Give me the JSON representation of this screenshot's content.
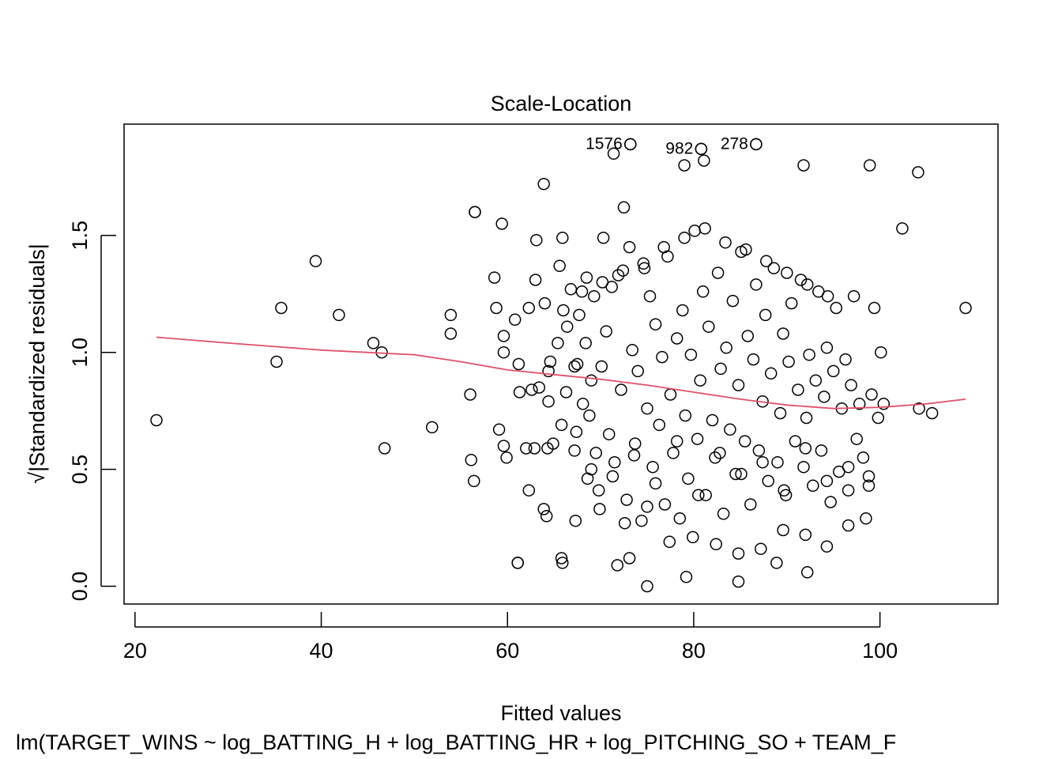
{
  "chart_data": {
    "type": "scatter",
    "title": "Scale-Location",
    "xlabel": "Fitted values",
    "ylabel": "√|Standardized residuals|",
    "subtitle": "lm(TARGET_WINS ~ log_BATTING_H + log_BATTING_HR + log_PITCHING_SO + TEAM_F",
    "xlim": [
      22.3,
      109.2
    ],
    "ylim": [
      0.0,
      1.9
    ],
    "xticks": [
      "20",
      "40",
      "60",
      "80",
      "100"
    ],
    "yticks": [
      "0.0",
      "0.5",
      "1.0",
      "1.5"
    ],
    "grid": false,
    "legend": "none",
    "colors": {
      "points": "#000000",
      "smoother": "#DF536B"
    },
    "labeled_points": [
      {
        "label": "1576",
        "x": 73.2,
        "y": 1.89
      },
      {
        "label": "982",
        "x": 80.8,
        "y": 1.87
      },
      {
        "label": "278",
        "x": 86.7,
        "y": 1.89
      }
    ],
    "smoother": {
      "x": [
        22.3,
        30,
        40,
        50,
        55,
        60,
        65,
        70,
        75,
        80,
        85,
        90,
        95,
        100,
        105,
        109.2
      ],
      "y": [
        1.065,
        1.04,
        1.01,
        0.99,
        0.96,
        0.925,
        0.905,
        0.885,
        0.86,
        0.83,
        0.8,
        0.775,
        0.76,
        0.765,
        0.78,
        0.8
      ]
    },
    "points": {
      "x": [
        22.3,
        35.2,
        35.7,
        39.4,
        41.9,
        45.6,
        46.5,
        46.8,
        51.9,
        53.9,
        53.9,
        56.0,
        56.1,
        56.4,
        56.5,
        58.6,
        58.8,
        59.1,
        59.4,
        59.6,
        59.6,
        59.9,
        60.8,
        61.1,
        61.2,
        61.3,
        62.0,
        62.3,
        62.3,
        62.6,
        63.0,
        63.1,
        63.4,
        63.9,
        64.0,
        64.3,
        64.4,
        64.4,
        64.6,
        64.9,
        65.4,
        65.6,
        65.8,
        65.9,
        66.0,
        66.3,
        66.4,
        66.8,
        67.2,
        67.2,
        67.3,
        67.4,
        67.5,
        67.7,
        68.1,
        68.4,
        68.5,
        68.6,
        68.8,
        69.0,
        69.3,
        69.5,
        69.8,
        70.1,
        70.3,
        70.6,
        70.9,
        71.2,
        71.5,
        71.9,
        72.2,
        72.5,
        72.8,
        73.1,
        73.4,
        73.7,
        74.0,
        74.4,
        74.7,
        75.0,
        75.3,
        75.6,
        75.9,
        76.3,
        76.6,
        76.9,
        77.2,
        77.5,
        77.8,
        78.2,
        78.5,
        78.8,
        79.1,
        79.4,
        79.7,
        80.1,
        80.4,
        80.7,
        81.0,
        81.3,
        81.6,
        82.0,
        82.3,
        82.6,
        82.9,
        83.2,
        83.5,
        83.9,
        84.2,
        84.5,
        84.8,
        85.1,
        85.5,
        85.8,
        86.1,
        86.4,
        86.7,
        87.0,
        87.4,
        87.7,
        88.0,
        88.3,
        88.6,
        89.0,
        89.3,
        89.6,
        89.9,
        90.2,
        90.5,
        90.9,
        91.2,
        91.5,
        91.8,
        92.1,
        92.4,
        92.8,
        93.1,
        93.4,
        93.7,
        94.0,
        94.3,
        94.7,
        95.0,
        95.3,
        95.6,
        95.9,
        96.3,
        96.6,
        96.9,
        97.2,
        97.5,
        97.8,
        98.2,
        98.5,
        98.8,
        99.1,
        99.4,
        99.8,
        100.1,
        100.4,
        102.4,
        104.1,
        104.2,
        105.6,
        109.2,
        71.4,
        73.2,
        79.0,
        80.8,
        81.1,
        86.7,
        91.8,
        98.9,
        75.0,
        79.2,
        84.8,
        88.9,
        92.2,
        61.1,
        65.9,
        71.8,
        73.1,
        63.9,
        65.8,
        62.9,
        56.5,
        59.6,
        64.2,
        69.9,
        72.6,
        75.0,
        77.4,
        79.9,
        82.4,
        84.8,
        87.2,
        89.6,
        92.0,
        94.3,
        96.6,
        68.0,
        70.2,
        72.4,
        74.6,
        76.8,
        79.0,
        81.2,
        83.4,
        85.6,
        87.8,
        90.0,
        92.2,
        94.4,
        69.0,
        71.3,
        73.6,
        75.9,
        78.2,
        80.5,
        82.8,
        85.1,
        87.4,
        89.7,
        92.0,
        94.3,
        96.6,
        98.8
      ],
      "y": [
        0.71,
        0.96,
        1.19,
        1.39,
        1.16,
        1.04,
        1.0,
        0.59,
        0.68,
        1.16,
        1.08,
        0.82,
        0.54,
        0.45,
        1.6,
        1.32,
        1.19,
        0.67,
        1.55,
        1.07,
        1.0,
        0.55,
        1.14,
        0.1,
        0.95,
        0.83,
        0.59,
        0.41,
        1.19,
        0.84,
        1.31,
        1.48,
        0.85,
        1.72,
        1.21,
        0.59,
        0.92,
        0.79,
        0.96,
        0.61,
        1.04,
        1.37,
        0.69,
        1.49,
        1.18,
        0.83,
        1.11,
        1.27,
        0.94,
        0.58,
        0.28,
        0.66,
        0.95,
        1.16,
        0.78,
        1.04,
        1.32,
        0.46,
        0.73,
        0.88,
        1.24,
        0.57,
        0.41,
        0.94,
        1.49,
        1.09,
        0.65,
        1.28,
        0.53,
        1.33,
        0.84,
        1.62,
        0.37,
        1.45,
        1.01,
        0.61,
        0.92,
        0.28,
        1.36,
        0.76,
        1.24,
        0.51,
        1.12,
        0.69,
        0.98,
        0.35,
        1.41,
        0.82,
        0.57,
        1.06,
        0.29,
        1.18,
        0.73,
        0.46,
        0.99,
        1.52,
        0.63,
        0.88,
        1.26,
        0.39,
        1.11,
        0.71,
        0.55,
        1.34,
        0.93,
        0.31,
        1.02,
        0.67,
        1.22,
        0.48,
        0.86,
        1.43,
        0.62,
        1.07,
        0.35,
        0.97,
        1.29,
        0.58,
        0.79,
        1.16,
        0.45,
        0.91,
        1.36,
        0.53,
        0.74,
        1.08,
        0.39,
        0.96,
        1.21,
        0.62,
        0.84,
        1.31,
        0.51,
        0.72,
        0.99,
        0.43,
        0.88,
        1.26,
        0.58,
        0.81,
        1.02,
        0.36,
        0.92,
        1.19,
        0.49,
        0.76,
        0.97,
        0.41,
        0.86,
        1.24,
        0.63,
        0.78,
        0.55,
        0.29,
        0.47,
        0.82,
        1.19,
        0.72,
        1.0,
        0.78,
        1.53,
        1.77,
        0.76,
        0.74,
        1.19,
        1.85,
        1.89,
        1.8,
        1.87,
        1.82,
        1.89,
        1.8,
        1.8,
        0.0,
        0.04,
        0.02,
        0.1,
        0.06,
        0.1,
        0.1,
        0.09,
        0.12,
        0.33,
        0.12,
        0.59,
        1.6,
        0.6,
        0.3,
        0.33,
        0.27,
        0.34,
        0.19,
        0.21,
        0.18,
        0.14,
        0.16,
        0.24,
        0.22,
        0.17,
        0.26,
        1.26,
        1.3,
        1.35,
        1.38,
        1.45,
        1.49,
        1.53,
        1.47,
        1.44,
        1.39,
        1.34,
        1.29,
        1.24,
        0.5,
        0.47,
        0.56,
        0.44,
        0.62,
        0.39,
        0.57,
        0.48,
        0.53,
        0.41,
        0.59,
        0.45,
        0.51,
        0.43
      ]
    }
  }
}
